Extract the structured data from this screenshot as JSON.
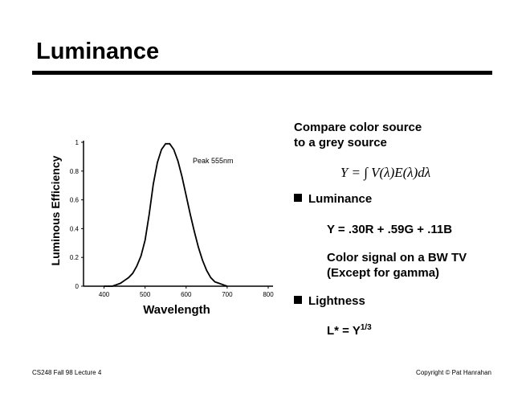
{
  "title": "Luminance",
  "chart_data": {
    "type": "line",
    "x_label": "Wavelength",
    "y_label": "Luminous Efficiency",
    "annotation": "Peak 555nm",
    "x": [
      400,
      410,
      420,
      430,
      440,
      450,
      460,
      470,
      480,
      490,
      500,
      510,
      520,
      530,
      540,
      550,
      560,
      570,
      580,
      590,
      600,
      610,
      620,
      630,
      640,
      650,
      660,
      670,
      680,
      690,
      700
    ],
    "values": [
      0.0,
      0.0,
      0.0,
      0.01,
      0.02,
      0.04,
      0.06,
      0.09,
      0.14,
      0.21,
      0.32,
      0.5,
      0.71,
      0.86,
      0.95,
      0.99,
      0.99,
      0.95,
      0.87,
      0.76,
      0.63,
      0.5,
      0.38,
      0.27,
      0.18,
      0.11,
      0.06,
      0.03,
      0.02,
      0.01,
      0.0
    ],
    "color": "#000000",
    "xlim": [
      350,
      800
    ],
    "xticks": [
      400,
      500,
      600,
      700,
      800
    ],
    "ylim": [
      0,
      1
    ],
    "yticks": [
      0,
      0.2,
      0.4,
      0.6,
      0.8,
      1
    ]
  },
  "compare": [
    "Compare color source",
    "to a grey source"
  ],
  "formula": "Y = ∫ V(λ)E(λ)dλ",
  "bullets": [
    {
      "label": "Luminance",
      "lines": [
        "Y = .30R + .59G + .11B",
        "Color signal on a BW TV",
        "(Except for gamma)"
      ]
    },
    {
      "label": "Lightness",
      "lines": [
        "L* = Y"
      ],
      "superscript": "1/3"
    }
  ],
  "footer": {
    "left": "CS248 Fall 98 Lecture 4",
    "right": "Copyright © Pat Hanrahan"
  }
}
